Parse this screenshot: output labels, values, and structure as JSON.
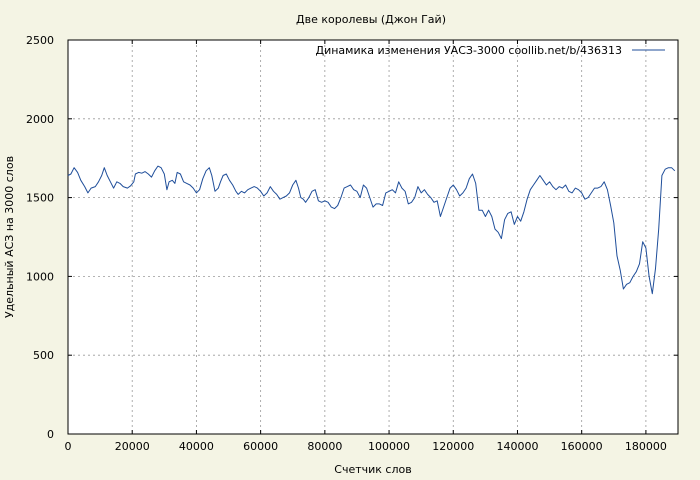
{
  "chart_data": {
    "type": "line",
    "title": "Две королевы (Джон Гай)",
    "xlabel": "Счетчик слов",
    "ylabel": "Удельный АСЗ на 3000 слов",
    "xlim": [
      0,
      190000
    ],
    "ylim": [
      0,
      2500
    ],
    "xticks": [
      0,
      20000,
      40000,
      60000,
      80000,
      100000,
      120000,
      140000,
      160000,
      180000
    ],
    "yticks": [
      0,
      500,
      1000,
      1500,
      2000,
      2500
    ],
    "grid": true,
    "legend_position": "top-right",
    "series": [
      {
        "name": "Динамика изменения УАСЗ-3000  coollib.net/b/436313",
        "color": "#1f4e9a",
        "points": [
          [
            0,
            1640
          ],
          [
            900,
            1650
          ],
          [
            1900,
            1690
          ],
          [
            3000,
            1660
          ],
          [
            4000,
            1610
          ],
          [
            5200,
            1570
          ],
          [
            6200,
            1530
          ],
          [
            7200,
            1560
          ],
          [
            8500,
            1570
          ],
          [
            9500,
            1600
          ],
          [
            10500,
            1640
          ],
          [
            11300,
            1690
          ],
          [
            12200,
            1640
          ],
          [
            13200,
            1600
          ],
          [
            14200,
            1560
          ],
          [
            15200,
            1600
          ],
          [
            16200,
            1590
          ],
          [
            17200,
            1570
          ],
          [
            18500,
            1560
          ],
          [
            19500,
            1575
          ],
          [
            20500,
            1600
          ],
          [
            21000,
            1650
          ],
          [
            22000,
            1660
          ],
          [
            23000,
            1655
          ],
          [
            24000,
            1665
          ],
          [
            25000,
            1650
          ],
          [
            26000,
            1630
          ],
          [
            27000,
            1670
          ],
          [
            28000,
            1700
          ],
          [
            29000,
            1690
          ],
          [
            30000,
            1650
          ],
          [
            30800,
            1550
          ],
          [
            31500,
            1600
          ],
          [
            32500,
            1610
          ],
          [
            33300,
            1590
          ],
          [
            34000,
            1660
          ],
          [
            35000,
            1650
          ],
          [
            36000,
            1600
          ],
          [
            37000,
            1590
          ],
          [
            38000,
            1580
          ],
          [
            39000,
            1560
          ],
          [
            40000,
            1530
          ],
          [
            41000,
            1550
          ],
          [
            42000,
            1620
          ],
          [
            43000,
            1670
          ],
          [
            44000,
            1690
          ],
          [
            44800,
            1640
          ],
          [
            45800,
            1540
          ],
          [
            46800,
            1560
          ],
          [
            47500,
            1600
          ],
          [
            48300,
            1640
          ],
          [
            49300,
            1650
          ],
          [
            50300,
            1610
          ],
          [
            51300,
            1580
          ],
          [
            52300,
            1540
          ],
          [
            53000,
            1520
          ],
          [
            54000,
            1540
          ],
          [
            55000,
            1530
          ],
          [
            56000,
            1550
          ],
          [
            57000,
            1560
          ],
          [
            58000,
            1570
          ],
          [
            59000,
            1560
          ],
          [
            60000,
            1540
          ],
          [
            61000,
            1510
          ],
          [
            62000,
            1530
          ],
          [
            63000,
            1570
          ],
          [
            64000,
            1540
          ],
          [
            65000,
            1520
          ],
          [
            66000,
            1490
          ],
          [
            67000,
            1500
          ],
          [
            68000,
            1510
          ],
          [
            69000,
            1530
          ],
          [
            70000,
            1580
          ],
          [
            71000,
            1610
          ],
          [
            71800,
            1560
          ],
          [
            72500,
            1500
          ],
          [
            73300,
            1490
          ],
          [
            74000,
            1470
          ],
          [
            75000,
            1500
          ],
          [
            76000,
            1540
          ],
          [
            77000,
            1550
          ],
          [
            78000,
            1480
          ],
          [
            79000,
            1470
          ],
          [
            80000,
            1480
          ],
          [
            81000,
            1470
          ],
          [
            82000,
            1440
          ],
          [
            83000,
            1430
          ],
          [
            84000,
            1450
          ],
          [
            85000,
            1500
          ],
          [
            86000,
            1560
          ],
          [
            87000,
            1570
          ],
          [
            88000,
            1580
          ],
          [
            89000,
            1550
          ],
          [
            90000,
            1540
          ],
          [
            91000,
            1500
          ],
          [
            92000,
            1580
          ],
          [
            93000,
            1560
          ],
          [
            94000,
            1500
          ],
          [
            95000,
            1440
          ],
          [
            96000,
            1460
          ],
          [
            97000,
            1460
          ],
          [
            98000,
            1450
          ],
          [
            99000,
            1530
          ],
          [
            100000,
            1540
          ],
          [
            101000,
            1550
          ],
          [
            102000,
            1530
          ],
          [
            103000,
            1600
          ],
          [
            104000,
            1560
          ],
          [
            105000,
            1540
          ],
          [
            106000,
            1460
          ],
          [
            107000,
            1470
          ],
          [
            108000,
            1500
          ],
          [
            109000,
            1570
          ],
          [
            110000,
            1530
          ],
          [
            111000,
            1550
          ],
          [
            112000,
            1520
          ],
          [
            113000,
            1500
          ],
          [
            114000,
            1470
          ],
          [
            115000,
            1480
          ],
          [
            116000,
            1380
          ],
          [
            117000,
            1440
          ],
          [
            118000,
            1500
          ],
          [
            119000,
            1560
          ],
          [
            120000,
            1580
          ],
          [
            121000,
            1550
          ],
          [
            122000,
            1510
          ],
          [
            123000,
            1530
          ],
          [
            124000,
            1560
          ],
          [
            125000,
            1620
          ],
          [
            126000,
            1650
          ],
          [
            127000,
            1590
          ],
          [
            128000,
            1420
          ],
          [
            129000,
            1420
          ],
          [
            130000,
            1380
          ],
          [
            131000,
            1420
          ],
          [
            132000,
            1380
          ],
          [
            133000,
            1300
          ],
          [
            134000,
            1280
          ],
          [
            135000,
            1240
          ],
          [
            136000,
            1360
          ],
          [
            137000,
            1400
          ],
          [
            138000,
            1410
          ],
          [
            139000,
            1330
          ],
          [
            140000,
            1380
          ],
          [
            141000,
            1350
          ],
          [
            142000,
            1410
          ],
          [
            143000,
            1490
          ],
          [
            144000,
            1550
          ],
          [
            145000,
            1580
          ],
          [
            146000,
            1610
          ],
          [
            147000,
            1640
          ],
          [
            148000,
            1610
          ],
          [
            149000,
            1580
          ],
          [
            150000,
            1600
          ],
          [
            151000,
            1570
          ],
          [
            152000,
            1550
          ],
          [
            153000,
            1570
          ],
          [
            154000,
            1560
          ],
          [
            155000,
            1580
          ],
          [
            156000,
            1540
          ],
          [
            157000,
            1530
          ],
          [
            158000,
            1560
          ],
          [
            159000,
            1550
          ],
          [
            160000,
            1530
          ],
          [
            161000,
            1490
          ],
          [
            162000,
            1500
          ],
          [
            163000,
            1530
          ],
          [
            164000,
            1560
          ],
          [
            165000,
            1560
          ],
          [
            166000,
            1570
          ],
          [
            167000,
            1600
          ],
          [
            168000,
            1550
          ],
          [
            169000,
            1450
          ],
          [
            170000,
            1340
          ],
          [
            171000,
            1130
          ],
          [
            172000,
            1040
          ],
          [
            173000,
            920
          ],
          [
            174000,
            950
          ],
          [
            175000,
            960
          ],
          [
            176000,
            1000
          ],
          [
            177000,
            1030
          ],
          [
            178000,
            1080
          ],
          [
            179000,
            1220
          ],
          [
            180000,
            1180
          ],
          [
            181000,
            1000
          ],
          [
            182000,
            890
          ],
          [
            183000,
            1050
          ],
          [
            184000,
            1300
          ],
          [
            185000,
            1640
          ],
          [
            186000,
            1680
          ],
          [
            187000,
            1690
          ],
          [
            188000,
            1690
          ],
          [
            189000,
            1670
          ]
        ]
      }
    ]
  }
}
